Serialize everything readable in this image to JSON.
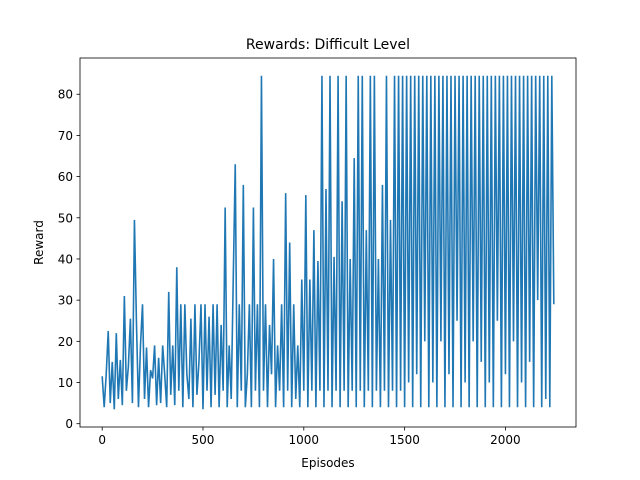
{
  "chart_data": {
    "type": "line",
    "title": "Rewards: Difficult Level",
    "xlabel": "Episodes",
    "ylabel": "Reward",
    "xlim": [
      -110,
      2350
    ],
    "ylim": [
      -0.8,
      88.8
    ],
    "xticks": [
      0,
      500,
      1000,
      1500,
      2000
    ],
    "yticks": [
      0,
      10,
      20,
      30,
      40,
      50,
      60,
      70,
      80
    ],
    "grid": false,
    "legend": "none",
    "line_color": "#1f77b4",
    "series": [
      {
        "x": [
          0,
          10,
          20,
          30,
          40,
          50,
          60,
          70,
          80,
          90,
          100,
          110,
          120,
          130,
          140,
          150,
          160,
          170,
          180,
          190,
          200,
          210,
          220,
          230,
          240,
          250,
          260,
          270,
          280,
          290,
          300,
          310,
          320,
          330,
          340,
          350,
          360,
          370,
          380,
          390,
          400,
          410,
          420,
          430,
          440,
          450,
          460,
          470,
          480,
          490,
          500,
          510,
          520,
          530,
          540,
          550,
          560,
          570,
          580,
          590,
          600,
          610,
          620,
          630,
          640,
          650,
          660,
          670,
          680,
          690,
          700,
          710,
          720,
          730,
          740,
          750,
          760,
          770,
          780,
          790,
          800,
          810,
          820,
          830,
          840,
          850,
          860,
          870,
          880,
          890,
          900,
          910,
          920,
          930,
          940,
          950,
          960,
          970,
          980,
          990,
          1000,
          1010,
          1020,
          1030,
          1040,
          1050,
          1060,
          1070,
          1080,
          1090,
          1100,
          1110,
          1120,
          1130,
          1140,
          1150,
          1160,
          1170,
          1180,
          1190,
          1200,
          1210,
          1220,
          1230,
          1240,
          1250,
          1260,
          1270,
          1280,
          1290,
          1300,
          1310,
          1320,
          1330,
          1340,
          1350,
          1360,
          1370,
          1380,
          1390,
          1400,
          1410,
          1420,
          1430,
          1440,
          1450,
          1460,
          1470,
          1480,
          1490,
          1500,
          1510,
          1520,
          1530,
          1540,
          1550,
          1560,
          1570,
          1580,
          1590,
          1600,
          1610,
          1620,
          1630,
          1640,
          1650,
          1660,
          1670,
          1680,
          1690,
          1700,
          1710,
          1720,
          1730,
          1740,
          1750,
          1760,
          1770,
          1780,
          1790,
          1800,
          1810,
          1820,
          1830,
          1840,
          1850,
          1860,
          1870,
          1880,
          1890,
          1900,
          1910,
          1920,
          1930,
          1940,
          1950,
          1960,
          1970,
          1980,
          1990,
          2000,
          2010,
          2020,
          2030,
          2040,
          2050,
          2060,
          2070,
          2080,
          2090,
          2100,
          2110,
          2120,
          2130,
          2140,
          2150,
          2160,
          2170,
          2180,
          2190,
          2200,
          2210,
          2220,
          2230,
          2240
        ],
        "y": [
          11.5,
          4,
          12,
          22.5,
          5,
          15,
          3.5,
          22,
          6,
          15.5,
          4.5,
          31,
          8,
          14,
          25.5,
          5,
          49.5,
          24.5,
          4,
          19,
          29,
          6,
          18.5,
          4,
          13,
          11,
          19,
          4.5,
          16,
          5,
          19,
          12,
          4,
          32,
          7,
          19,
          4.5,
          38,
          8,
          29,
          4,
          29,
          12,
          6,
          25.5,
          4,
          29,
          7,
          15,
          29,
          3.5,
          29,
          8,
          26,
          4,
          29,
          7,
          29,
          4,
          24,
          8,
          52.5,
          4,
          19,
          6,
          35,
          63,
          4,
          29,
          8,
          58,
          4,
          12,
          29,
          4,
          52.5,
          8,
          29,
          4,
          84.5,
          8,
          29,
          4,
          24,
          12,
          40,
          4,
          19,
          8,
          29,
          4,
          56,
          8,
          44,
          4,
          29,
          6,
          19,
          4,
          35,
          8,
          55.5,
          4,
          35,
          8,
          47,
          4,
          39.5,
          8,
          84.5,
          4,
          57,
          8,
          84.5,
          4,
          40.5,
          8,
          84.5,
          4,
          54,
          8,
          84.5,
          4,
          40,
          8,
          64.5,
          4,
          84.5,
          8,
          84.5,
          4,
          47,
          8,
          84.5,
          4,
          84.5,
          8,
          40,
          4,
          58,
          8,
          84.5,
          4,
          49.5,
          8,
          84.5,
          4,
          84.5,
          8,
          84.5,
          4,
          84.5,
          10,
          84.5,
          4,
          84.5,
          12,
          84.5,
          4,
          84.5,
          20,
          84.5,
          4,
          84.5,
          10,
          84.5,
          4,
          84.5,
          20,
          84.5,
          4,
          84.5,
          12,
          84.5,
          4,
          84.5,
          25,
          84.5,
          4,
          84.5,
          10,
          84.5,
          4,
          84.5,
          20,
          84.5,
          4,
          84.5,
          15,
          84.5,
          4,
          84.5,
          10,
          84.5,
          4,
          84.5,
          25,
          84.5,
          4,
          84.5,
          12,
          84.5,
          4,
          84.5,
          20,
          84.5,
          4,
          84.5,
          10,
          84.5,
          4,
          84.5,
          15,
          84.5,
          4,
          84.5,
          30,
          84.5,
          4,
          84.5,
          6,
          84.5,
          4,
          84.5,
          29
        ]
      }
    ]
  }
}
